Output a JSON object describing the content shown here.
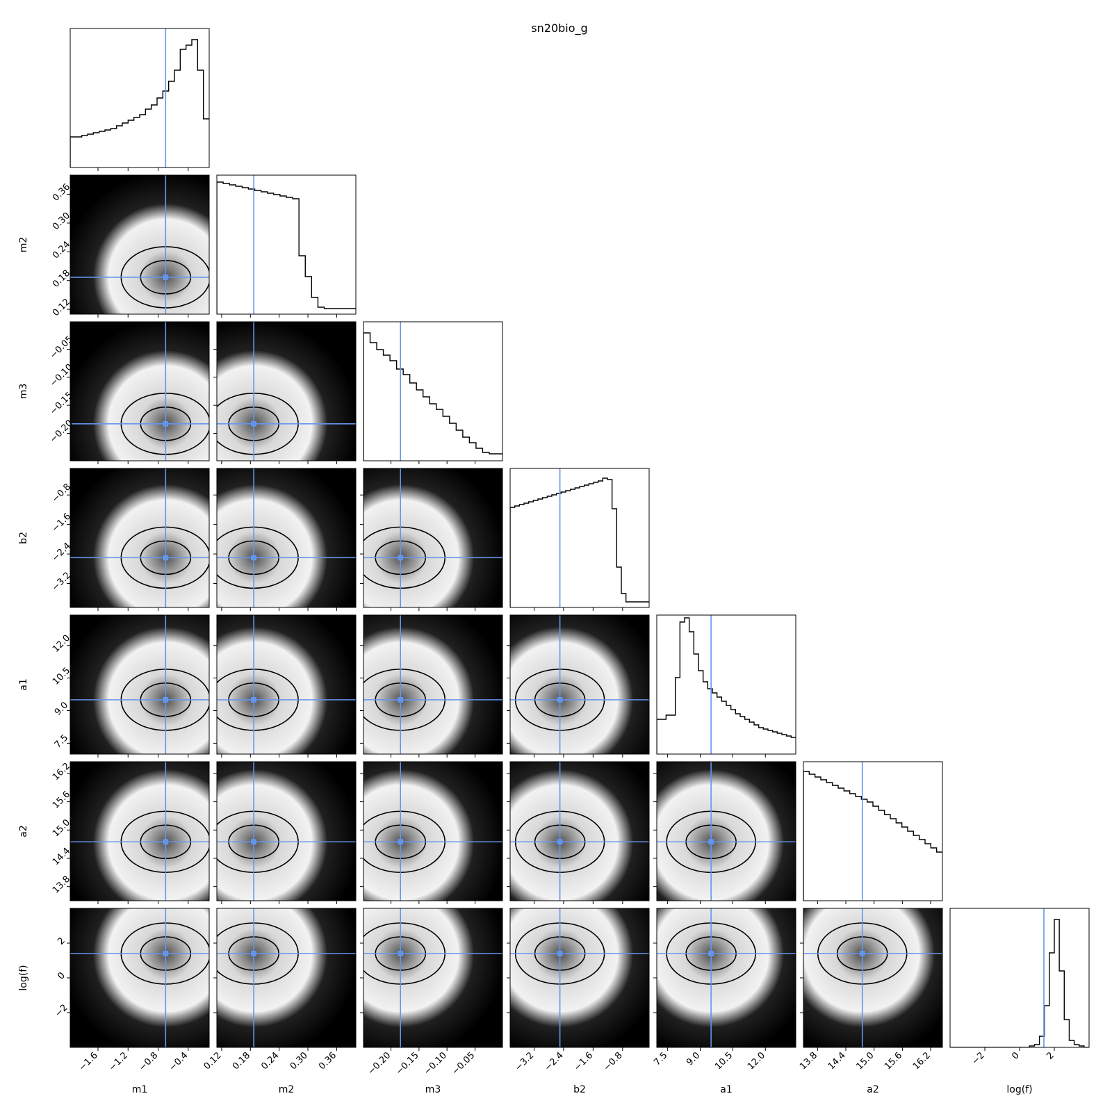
{
  "chart_data": {
    "type": "corner",
    "title": "sn20bio_g",
    "parameters": [
      "m1",
      "m2",
      "m3",
      "b2",
      "a1",
      "a2",
      "log(f)"
    ],
    "truths": {
      "m1": -0.7,
      "m2": 0.187,
      "m3": -0.183,
      "b2": -2.5,
      "a1": 9.5,
      "a2": 14.75,
      "log(f)": 1.4
    },
    "ranges": {
      "m1": [
        -1.97,
        -0.12
      ],
      "m2": [
        0.11,
        0.4
      ],
      "m3": [
        -0.249,
        -0.001
      ],
      "b2": [
        -3.85,
        -0.08
      ],
      "a1": [
        7.0,
        13.4
      ],
      "a2": [
        13.5,
        16.45
      ],
      "log(f)": [
        -4.0,
        4.0
      ]
    },
    "ticks": {
      "m1": [
        -1.6,
        -1.2,
        -0.8,
        -0.4
      ],
      "m2": [
        0.12,
        0.18,
        0.24,
        0.3,
        0.36
      ],
      "m3": [
        -0.2,
        -0.15,
        -0.1,
        -0.05
      ],
      "b2": [
        -3.2,
        -2.4,
        -1.6,
        -0.8
      ],
      "a1": [
        7.5,
        9.0,
        10.5,
        12.0
      ],
      "a2": [
        13.8,
        14.4,
        15.0,
        15.6,
        16.2
      ],
      "log(f)": [
        -2,
        0,
        2
      ]
    },
    "tick_labels": {
      "m1": [
        "−1.6",
        "−1.2",
        "−0.8",
        "−0.4"
      ],
      "m2": [
        "0.12",
        "0.18",
        "0.24",
        "0.30",
        "0.36"
      ],
      "m3": [
        "−0.20",
        "−0.15",
        "−0.10",
        "−0.05"
      ],
      "b2": [
        "−3.2",
        "−2.4",
        "−1.6",
        "−0.8"
      ],
      "a1": [
        "7.5",
        "9.0",
        "10.5",
        "12.0"
      ],
      "a2": [
        "13.8",
        "14.4",
        "15.0",
        "15.6",
        "16.2"
      ],
      "log(f)": [
        "−2",
        "0",
        "2"
      ]
    },
    "histograms": {
      "m1": [
        0.22,
        0.22,
        0.23,
        0.24,
        0.25,
        0.26,
        0.27,
        0.28,
        0.3,
        0.32,
        0.34,
        0.36,
        0.38,
        0.42,
        0.45,
        0.5,
        0.55,
        0.62,
        0.7,
        0.85,
        0.88,
        0.92,
        0.7,
        0.35
      ],
      "m2": [
        0.95,
        0.94,
        0.93,
        0.92,
        0.91,
        0.9,
        0.89,
        0.88,
        0.87,
        0.86,
        0.85,
        0.84,
        0.83,
        0.42,
        0.27,
        0.12,
        0.05,
        0.04,
        0.04,
        0.04,
        0.04,
        0.04
      ],
      "m3": [
        0.92,
        0.85,
        0.8,
        0.76,
        0.72,
        0.66,
        0.62,
        0.56,
        0.51,
        0.46,
        0.41,
        0.37,
        0.32,
        0.27,
        0.22,
        0.17,
        0.13,
        0.09,
        0.06,
        0.05,
        0.05
      ],
      "b2": [
        0.72,
        0.73,
        0.74,
        0.75,
        0.76,
        0.77,
        0.78,
        0.79,
        0.8,
        0.81,
        0.82,
        0.83,
        0.84,
        0.85,
        0.86,
        0.87,
        0.88,
        0.89,
        0.9,
        0.91,
        0.93,
        0.92,
        0.71,
        0.29,
        0.1,
        0.04,
        0.04,
        0.04,
        0.04,
        0.04
      ],
      "a1": [
        0.25,
        0.25,
        0.28,
        0.28,
        0.55,
        0.95,
        0.98,
        0.88,
        0.72,
        0.6,
        0.52,
        0.47,
        0.44,
        0.41,
        0.38,
        0.35,
        0.32,
        0.29,
        0.27,
        0.25,
        0.23,
        0.21,
        0.19,
        0.18,
        0.17,
        0.16,
        0.15,
        0.14,
        0.13,
        0.12
      ],
      "a2": [
        0.93,
        0.91,
        0.89,
        0.87,
        0.85,
        0.83,
        0.81,
        0.79,
        0.77,
        0.75,
        0.73,
        0.71,
        0.68,
        0.65,
        0.62,
        0.59,
        0.56,
        0.53,
        0.5,
        0.47,
        0.44,
        0.41,
        0.38,
        0.35
      ],
      "log(f)": [
        0.0,
        0.0,
        0.0,
        0.0,
        0.0,
        0.0,
        0.0,
        0.0,
        0.0,
        0.0,
        0.0,
        0.0,
        0.0,
        0.0,
        0.0,
        0.0,
        0.01,
        0.02,
        0.08,
        0.3,
        0.68,
        0.92,
        0.55,
        0.2,
        0.05,
        0.02,
        0.01,
        0.0
      ]
    }
  }
}
